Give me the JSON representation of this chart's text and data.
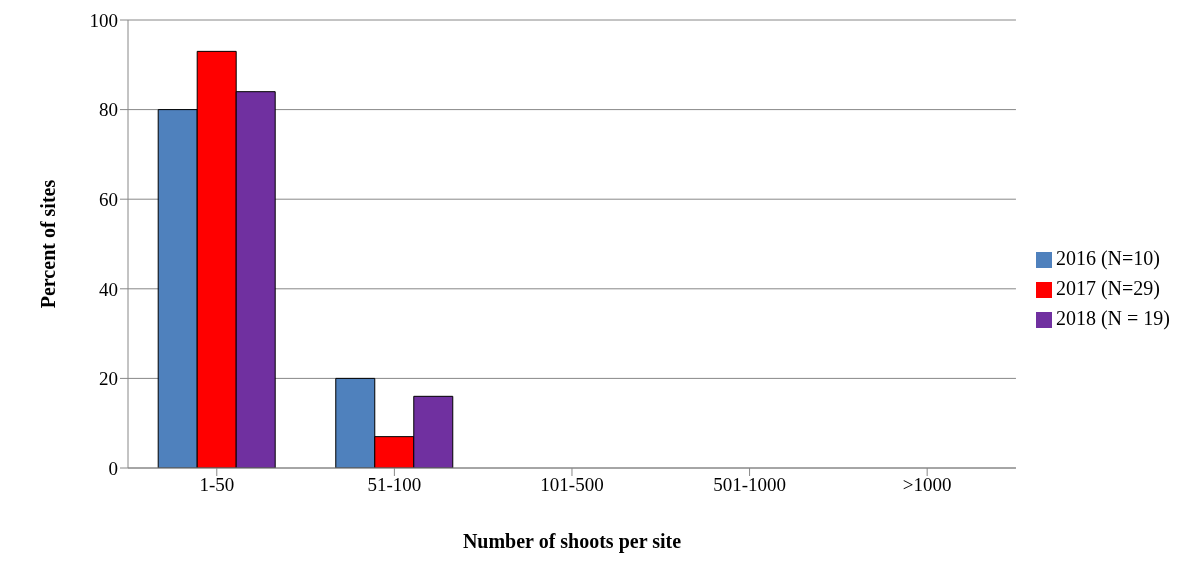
{
  "chart_data": {
    "type": "bar",
    "xlabel": "Number of shoots per site",
    "ylabel": "Percent of sites",
    "categories": [
      "1-50",
      "51-100",
      "101-500",
      "501-1000",
      ">1000"
    ],
    "series": [
      {
        "name": "2016 (N=10)",
        "color": "#4f81bd",
        "values": [
          80,
          20,
          0,
          0,
          0
        ]
      },
      {
        "name": "2017 (N=29)",
        "color": "#ff0000",
        "values": [
          93,
          7,
          0,
          0,
          0
        ]
      },
      {
        "name": "2018 (N = 19)",
        "color": "#7030a0",
        "values": [
          84,
          16,
          0,
          0,
          0
        ]
      }
    ],
    "ylim": [
      0,
      100
    ],
    "yticks": [
      0,
      20,
      40,
      60,
      80,
      100
    ],
    "grid": "y",
    "legend": "right"
  }
}
